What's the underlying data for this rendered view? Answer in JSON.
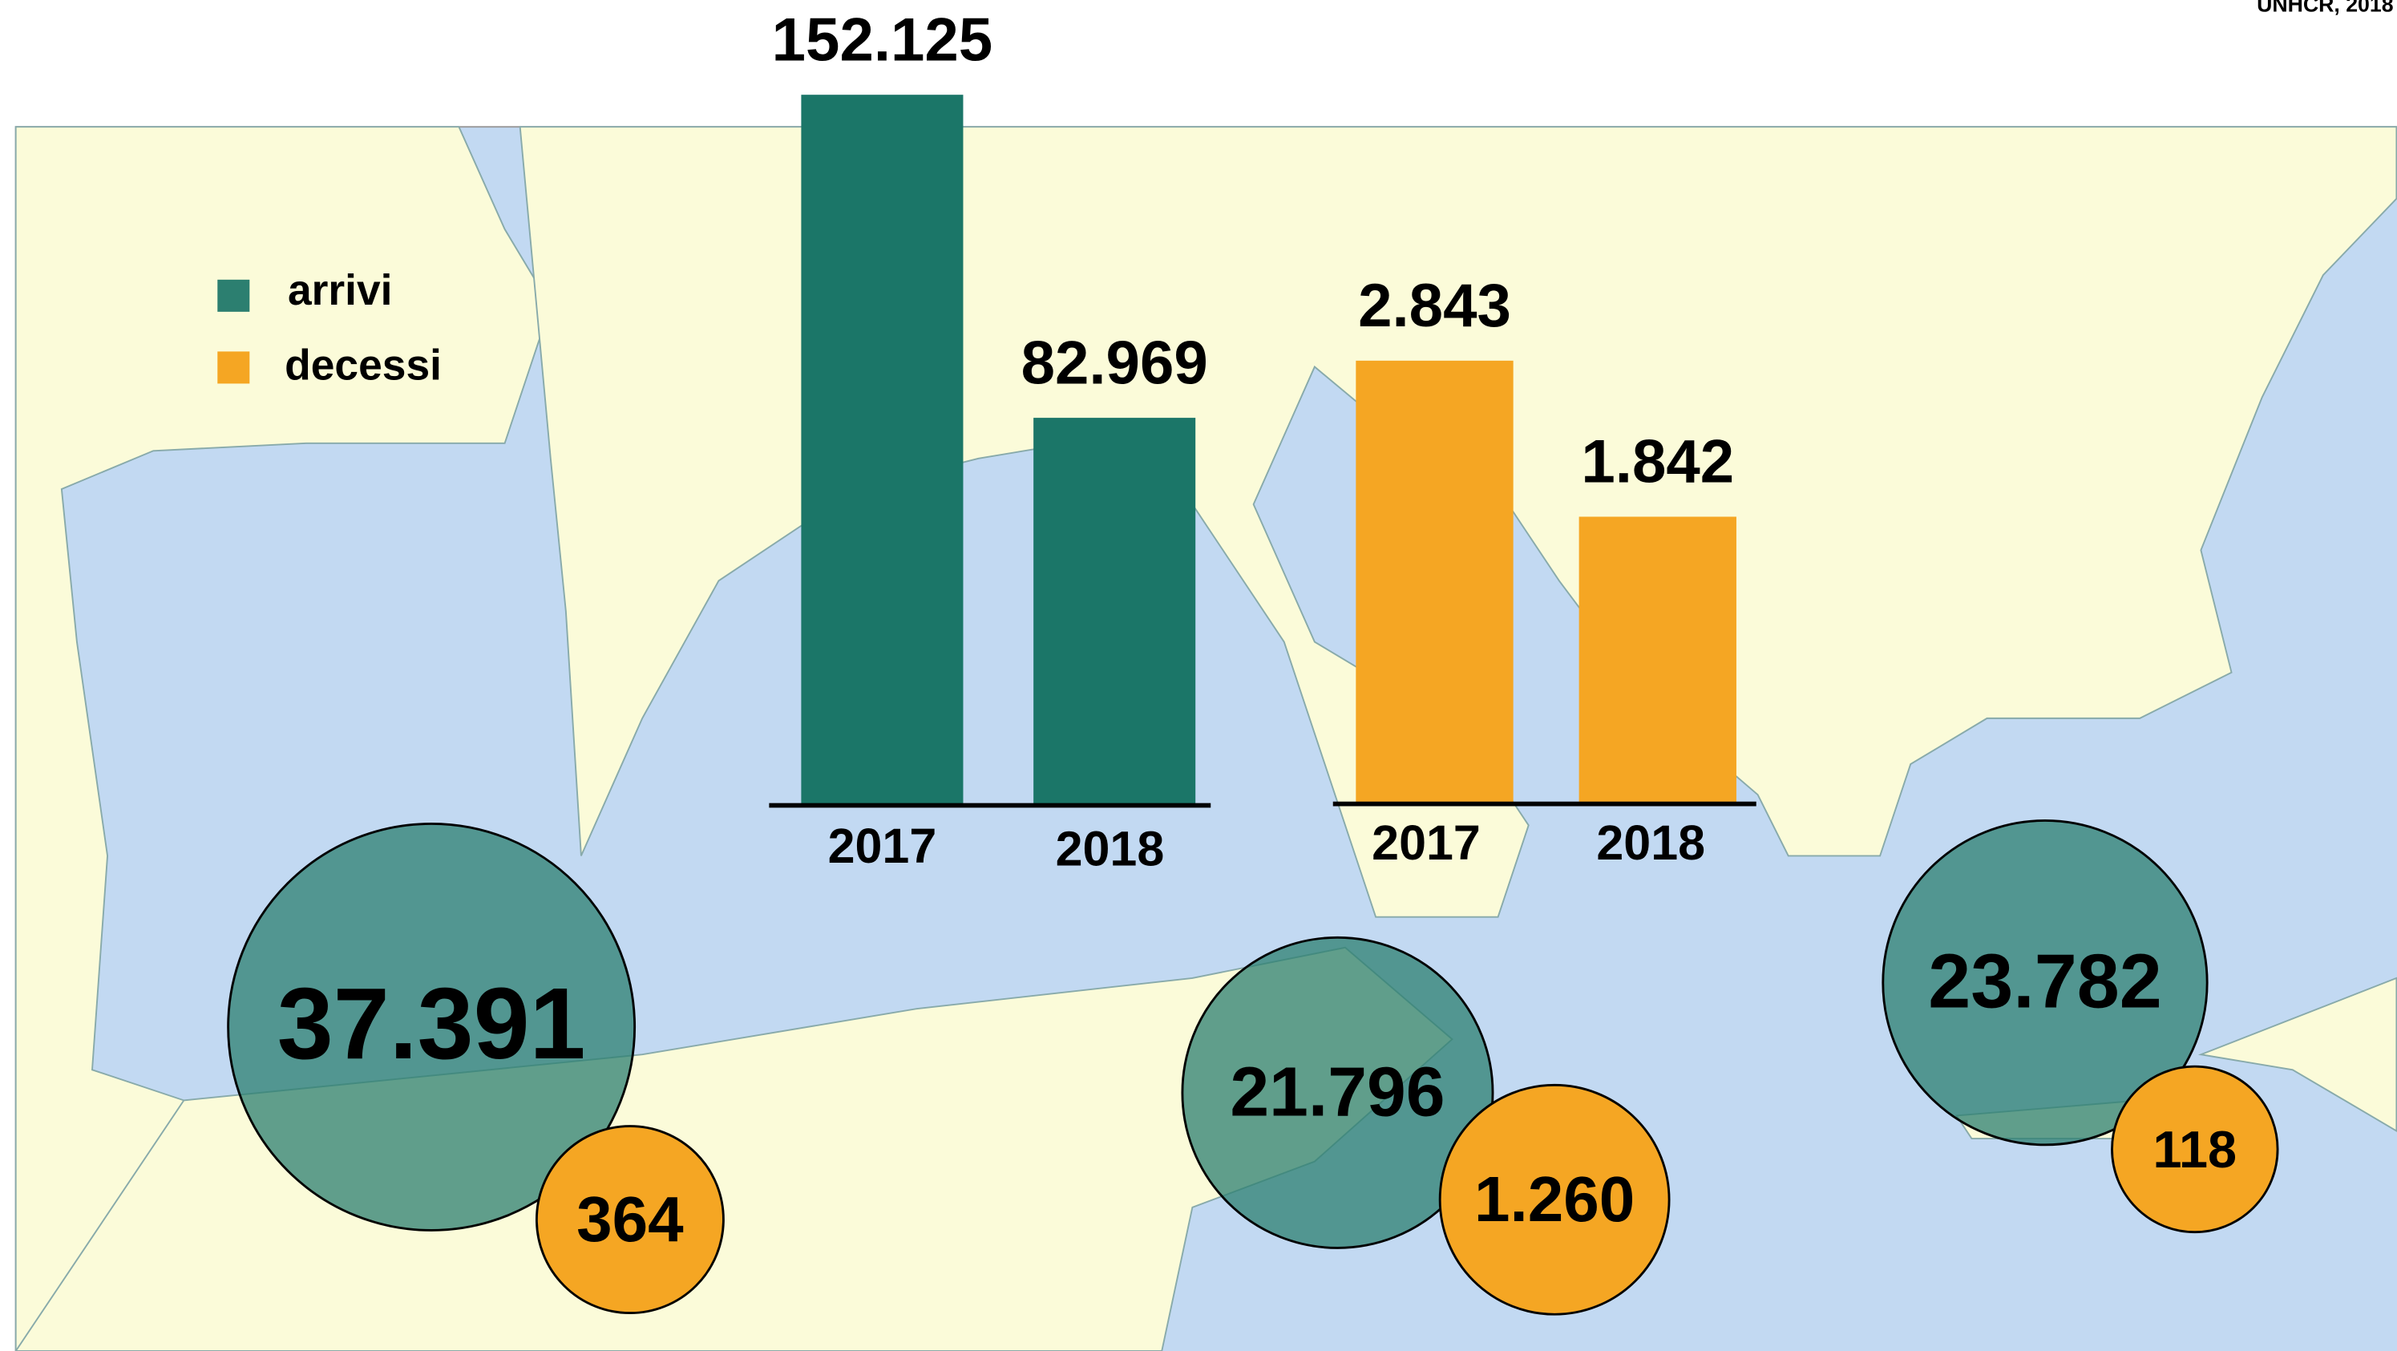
{
  "source": "UNHCR, 2018",
  "chart_data": [
    {
      "type": "bar",
      "categories": [
        "2017",
        "2018"
      ],
      "values": [
        152125,
        82969
      ],
      "value_labels": [
        "152.125",
        "82.969"
      ],
      "color": "#1b7668"
    },
    {
      "type": "bar",
      "categories": [
        "2017",
        "2018"
      ],
      "values": [
        2843,
        1842
      ],
      "value_labels": [
        "2.843",
        "1.842"
      ],
      "color": "#f5a623"
    },
    {
      "type": "bubble",
      "series": [
        {
          "name": "arrivi",
          "color": "#2c7f70",
          "values": [
            37391,
            21796,
            23782
          ],
          "value_labels": [
            "37.391",
            "21.796",
            "23.782"
          ]
        },
        {
          "name": "decessi",
          "color": "#f5a623",
          "values": [
            364,
            1260,
            118
          ],
          "value_labels": [
            "364",
            "1.260",
            "118"
          ]
        }
      ]
    }
  ]
}
